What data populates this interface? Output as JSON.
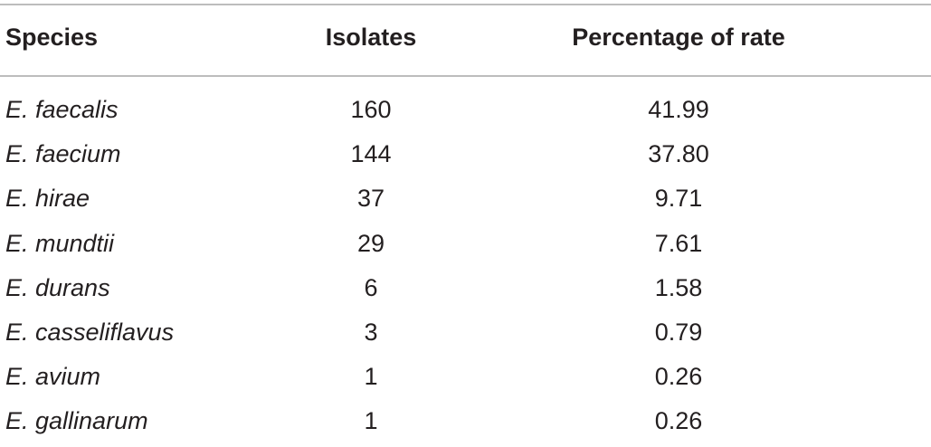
{
  "table": {
    "headers": {
      "species": "Species",
      "isolates": "Isolates",
      "rate": "Percentage of rate"
    },
    "rows": [
      {
        "species": "E. faecalis",
        "isolates": "160",
        "rate": "41.99"
      },
      {
        "species": "E. faecium",
        "isolates": "144",
        "rate": "37.80"
      },
      {
        "species": "E. hirae",
        "isolates": "37",
        "rate": "9.71"
      },
      {
        "species": "E. mundtii",
        "isolates": "29",
        "rate": "7.61"
      },
      {
        "species": "E. durans",
        "isolates": "6",
        "rate": "1.58"
      },
      {
        "species": "E. casseliflavus",
        "isolates": "3",
        "rate": "0.79"
      },
      {
        "species": "E. avium",
        "isolates": "1",
        "rate": "0.26"
      },
      {
        "species": "E. gallinarum",
        "isolates": "1",
        "rate": "0.26"
      }
    ]
  }
}
